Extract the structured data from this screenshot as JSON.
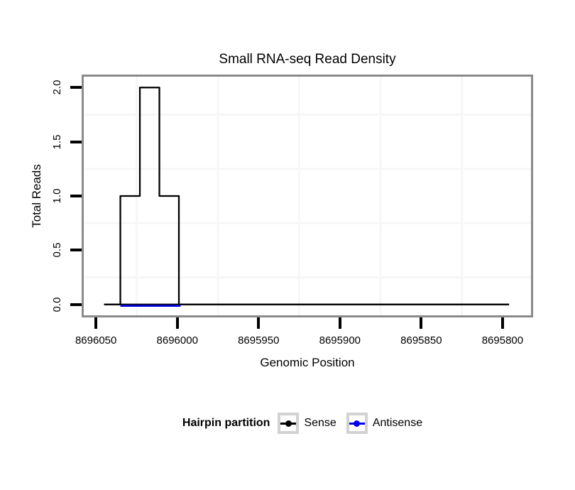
{
  "chart_data": {
    "type": "line",
    "subtype": "step-coverage",
    "title": "Small RNA-seq Read Density",
    "xlabel": "Genomic Position",
    "ylabel": "Total Reads",
    "x_reversed": true,
    "xlim": [
      8696057.5,
      8695782.5
    ],
    "ylim": [
      -0.1,
      2.1
    ],
    "x_ticks": [
      8696050,
      8696000,
      8695950,
      8695900,
      8695850,
      8695800
    ],
    "y_ticks": [
      0,
      0.5,
      1,
      1.5,
      2
    ],
    "y_tick_labels": [
      "0.0",
      "0.5",
      "1.0",
      "1.5",
      "2.0"
    ],
    "grid": {
      "minor_x": [
        8696025,
        8695975,
        8695925,
        8695875,
        8695825
      ],
      "minor_y": [
        0.25,
        0.75,
        1.25,
        1.75
      ],
      "color": "#f7f7f7"
    },
    "hairpin_extent": {
      "start": 8696045,
      "end": 8695796,
      "y": 0,
      "color": "#000000"
    },
    "series": [
      {
        "name": "Sense",
        "color": "#000000",
        "points": [
          [
            8696045,
            0
          ],
          [
            8696035,
            0
          ],
          [
            8696035,
            1
          ],
          [
            8696023,
            1
          ],
          [
            8696023,
            2
          ],
          [
            8696011,
            2
          ],
          [
            8696011,
            1
          ],
          [
            8695999,
            1
          ],
          [
            8695999,
            0
          ],
          [
            8695796,
            0
          ]
        ]
      },
      {
        "name": "Antisense",
        "color": "#0000ee",
        "points": [
          [
            8696035,
            0
          ],
          [
            8695998,
            0
          ]
        ]
      }
    ],
    "legend": {
      "title": "Hairpin partition",
      "position": "bottom",
      "entries": [
        {
          "label": "Sense",
          "color": "#000000"
        },
        {
          "label": "Antisense",
          "color": "#0000ee"
        }
      ]
    },
    "panel": {
      "border_color": "#8b8b8b",
      "background": "#ffffff"
    }
  }
}
